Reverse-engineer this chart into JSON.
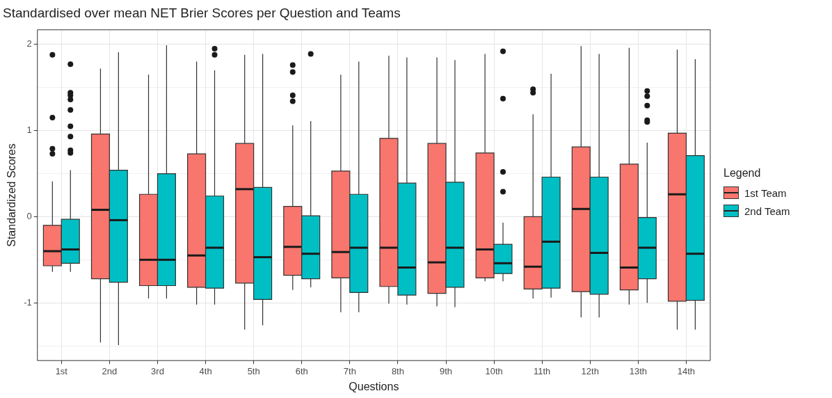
{
  "chart_data": {
    "type": "box",
    "title": "Standardised over mean NET Brier Scores per Question and Teams",
    "xlabel": "Questions",
    "ylabel": "Standardized Scores",
    "legend_title": "Legend",
    "legend": "right",
    "grid": true,
    "categories": [
      "1st",
      "2nd",
      "3rd",
      "4th",
      "5th",
      "6th",
      "7th",
      "8th",
      "9th",
      "10th",
      "11th",
      "12th",
      "13th",
      "14th"
    ],
    "ylim": [
      -1.67,
      2.17
    ],
    "yticks": [
      {
        "value": -1.5,
        "label": null
      },
      -1,
      {
        "value": -0.5,
        "label": null
      },
      0,
      {
        "value": 0.5,
        "label": null
      },
      1,
      {
        "value": 1.5,
        "label": null
      },
      2
    ],
    "series": [
      {
        "name": "1st Team",
        "color": "#f8766d",
        "boxes": [
          {
            "low": -0.64,
            "q1": -0.57,
            "median": -0.4,
            "q3": -0.1,
            "high": 0.41,
            "outliers": [
              1.88,
              1.15,
              0.79,
              0.73
            ]
          },
          {
            "low": -1.46,
            "q1": -0.72,
            "median": 0.08,
            "q3": 0.96,
            "high": 1.72
          },
          {
            "low": -0.95,
            "q1": -0.8,
            "median": -0.5,
            "q3": 0.26,
            "high": 1.65
          },
          {
            "low": -1.02,
            "q1": -0.82,
            "median": -0.45,
            "q3": 0.73,
            "high": 1.8
          },
          {
            "low": -1.31,
            "q1": -0.77,
            "median": 0.32,
            "q3": 0.85,
            "high": 1.88
          },
          {
            "low": -0.85,
            "q1": -0.68,
            "median": -0.35,
            "q3": 0.12,
            "high": 1.06,
            "outliers": [
              1.76,
              1.68,
              1.41,
              1.34
            ]
          },
          {
            "low": -1.11,
            "q1": -0.71,
            "median": -0.41,
            "q3": 0.53,
            "high": 1.65
          },
          {
            "low": -1.01,
            "q1": -0.81,
            "median": -0.36,
            "q3": 0.91,
            "high": 1.87
          },
          {
            "low": -1.04,
            "q1": -0.89,
            "median": -0.53,
            "q3": 0.85,
            "high": 1.85
          },
          {
            "low": -0.75,
            "q1": -0.71,
            "median": -0.38,
            "q3": 0.74,
            "high": 1.89
          },
          {
            "low": -0.95,
            "q1": -0.84,
            "median": -0.58,
            "q3": 0.0,
            "high": 1.19,
            "outliers": [
              1.48,
              1.44
            ]
          },
          {
            "low": -1.17,
            "q1": -0.87,
            "median": 0.09,
            "q3": 0.81,
            "high": 1.98
          },
          {
            "low": -1.02,
            "q1": -0.85,
            "median": -0.59,
            "q3": 0.61,
            "high": 1.96
          },
          {
            "low": -1.31,
            "q1": -0.98,
            "median": 0.26,
            "q3": 0.97,
            "high": 1.94
          }
        ]
      },
      {
        "name": "2nd Team",
        "color": "#00bfc4",
        "boxes": [
          {
            "low": -0.64,
            "q1": -0.54,
            "median": -0.38,
            "q3": -0.03,
            "high": 0.54,
            "outliers": [
              1.77,
              1.44,
              1.41,
              1.36,
              1.24,
              1.05,
              0.93,
              0.77,
              0.74
            ]
          },
          {
            "low": -1.49,
            "q1": -0.76,
            "median": -0.04,
            "q3": 0.54,
            "high": 1.91
          },
          {
            "low": -0.95,
            "q1": -0.8,
            "median": -0.5,
            "q3": 0.5,
            "high": 1.99
          },
          {
            "low": -1.02,
            "q1": -0.83,
            "median": -0.36,
            "q3": 0.24,
            "high": 1.7,
            "outliers": [
              1.95,
              1.88
            ]
          },
          {
            "low": -1.26,
            "q1": -0.96,
            "median": -0.47,
            "q3": 0.34,
            "high": 1.89
          },
          {
            "low": -0.82,
            "q1": -0.72,
            "median": -0.43,
            "q3": 0.01,
            "high": 1.11,
            "outliers": [
              1.89
            ]
          },
          {
            "low": -1.11,
            "q1": -0.88,
            "median": -0.36,
            "q3": 0.26,
            "high": 1.8
          },
          {
            "low": -1.02,
            "q1": -0.91,
            "median": -0.59,
            "q3": 0.39,
            "high": 1.85
          },
          {
            "low": -1.05,
            "q1": -0.82,
            "median": -0.36,
            "q3": 0.4,
            "high": 1.82
          },
          {
            "low": -0.75,
            "q1": -0.66,
            "median": -0.54,
            "q3": -0.32,
            "high": -0.07,
            "outliers": [
              1.92,
              1.37,
              0.52,
              0.29
            ]
          },
          {
            "low": -0.94,
            "q1": -0.83,
            "median": -0.29,
            "q3": 0.46,
            "high": 1.66
          },
          {
            "low": -1.17,
            "q1": -0.9,
            "median": -0.42,
            "q3": 0.46,
            "high": 1.89
          },
          {
            "low": -1.0,
            "q1": -0.72,
            "median": -0.36,
            "q3": -0.01,
            "high": 0.86,
            "outliers": [
              1.46,
              1.4,
              1.29,
              1.12,
              1.1
            ]
          },
          {
            "low": -1.31,
            "q1": -0.97,
            "median": -0.43,
            "q3": 0.71,
            "high": 1.83
          }
        ]
      }
    ]
  }
}
